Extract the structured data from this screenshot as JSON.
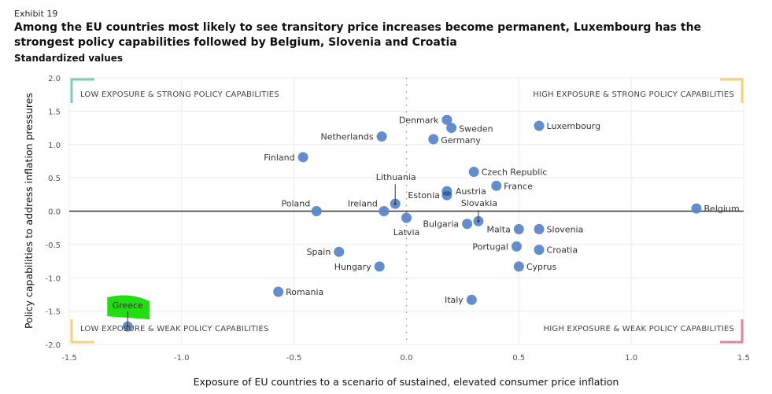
{
  "header": {
    "exhibit": "Exhibit 19",
    "title": "Among the EU countries most likely to see transitory price increases become permanent, Luxembourg has the strongest policy capabilities followed by Belgium, Slovenia and Croatia",
    "subtitle": "Standardized values"
  },
  "chart_data": {
    "type": "scatter",
    "title": "Among the EU countries most likely to see transitory price increases become permanent, Luxembourg has the strongest policy capabilities followed by Belgium, Slovenia and Croatia",
    "subtitle": "Standardized values",
    "xlabel": "Exposure of EU countries to a scenario of sustained, elevated consumer price inflation",
    "ylabel": "Policy capabilities to address inflation pressures",
    "xlim": [
      -1.5,
      1.5
    ],
    "ylim": [
      -2.0,
      2.0
    ],
    "xticks": [
      "-1.5",
      "-1.0",
      "-0.5",
      "0.0",
      "0.5",
      "1.0",
      "1.5"
    ],
    "yticks": [
      "2.0",
      "1.5",
      "1.0",
      "0.5",
      "0.0",
      "-0.5",
      "-1.0",
      "-1.5",
      "-2.0"
    ],
    "grid": true,
    "point_color": "#5b87c9",
    "highlight_color": "#22dd11",
    "quadrants": [
      {
        "label": "LOW EXPOSURE & STRONG POLICY CAPABILITIES",
        "position": "top-left",
        "color": "#7fc9b8"
      },
      {
        "label": "HIGH EXPOSURE & STRONG POLICY CAPABILITIES",
        "position": "top-right",
        "color": "#f2d27a"
      },
      {
        "label": "LOW EXPOSURE & WEAK POLICY CAPABILITIES",
        "position": "bottom-left",
        "color": "#f2d27a"
      },
      {
        "label": "HIGH EXPOSURE & WEAK POLICY CAPABILITIES",
        "position": "bottom-right",
        "color": "#d98a9c"
      }
    ],
    "points": [
      {
        "name": "Denmark",
        "x": 0.18,
        "y": 1.37,
        "label_side": "left"
      },
      {
        "name": "Sweden",
        "x": 0.2,
        "y": 1.25,
        "label_side": "right"
      },
      {
        "name": "Germany",
        "x": 0.12,
        "y": 1.08,
        "label_side": "right"
      },
      {
        "name": "Netherlands",
        "x": -0.11,
        "y": 1.12,
        "label_side": "left"
      },
      {
        "name": "Luxembourg",
        "x": 0.59,
        "y": 1.28,
        "label_side": "right"
      },
      {
        "name": "Finland",
        "x": -0.46,
        "y": 0.81,
        "label_side": "left"
      },
      {
        "name": "Czech Republic",
        "x": 0.3,
        "y": 0.59,
        "label_side": "right"
      },
      {
        "name": "France",
        "x": 0.4,
        "y": 0.38,
        "label_side": "right"
      },
      {
        "name": "Austria",
        "x": 0.18,
        "y": 0.3,
        "label_side": "right"
      },
      {
        "name": "Estonia",
        "x": 0.18,
        "y": 0.24,
        "label_side": "left"
      },
      {
        "name": "Lithuania",
        "x": -0.05,
        "y": 0.11,
        "label_side": "above-leader"
      },
      {
        "name": "Poland",
        "x": -0.4,
        "y": 0.0,
        "label_side": "above-left"
      },
      {
        "name": "Ireland",
        "x": -0.1,
        "y": 0.0,
        "label_side": "above-left"
      },
      {
        "name": "Belgium",
        "x": 1.29,
        "y": 0.04,
        "label_side": "right"
      },
      {
        "name": "Latvia",
        "x": 0.0,
        "y": -0.1,
        "label_side": "below"
      },
      {
        "name": "Bulgaria",
        "x": 0.27,
        "y": -0.19,
        "label_side": "left"
      },
      {
        "name": "Slovakia",
        "x": 0.32,
        "y": -0.15,
        "label_side": "above-leader"
      },
      {
        "name": "Malta",
        "x": 0.5,
        "y": -0.27,
        "label_side": "left"
      },
      {
        "name": "Slovenia",
        "x": 0.59,
        "y": -0.27,
        "label_side": "right"
      },
      {
        "name": "Portugal",
        "x": 0.49,
        "y": -0.53,
        "label_side": "left"
      },
      {
        "name": "Croatia",
        "x": 0.59,
        "y": -0.58,
        "label_side": "right"
      },
      {
        "name": "Cyprus",
        "x": 0.5,
        "y": -0.83,
        "label_side": "right"
      },
      {
        "name": "Spain",
        "x": -0.3,
        "y": -0.61,
        "label_side": "left"
      },
      {
        "name": "Hungary",
        "x": -0.12,
        "y": -0.83,
        "label_side": "left"
      },
      {
        "name": "Romania",
        "x": -0.57,
        "y": -1.21,
        "label_side": "right"
      },
      {
        "name": "Italy",
        "x": 0.29,
        "y": -1.33,
        "label_side": "left"
      },
      {
        "name": "Greece",
        "x": -1.24,
        "y": -1.73,
        "label_side": "above-leader",
        "highlighted": true
      }
    ]
  }
}
